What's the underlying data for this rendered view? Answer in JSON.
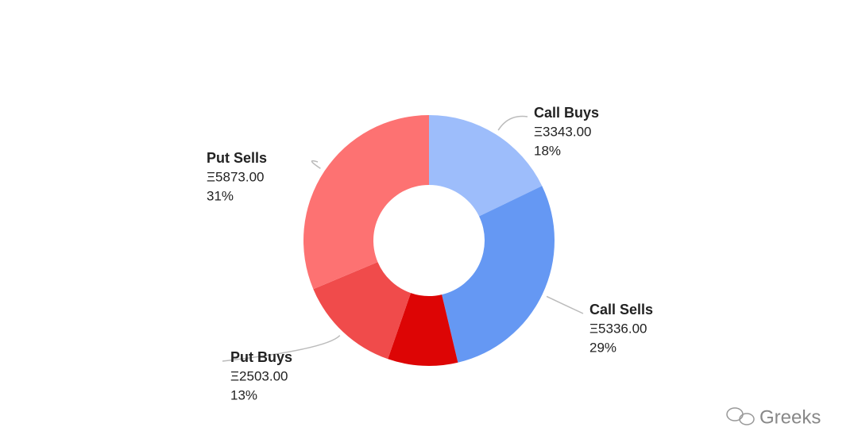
{
  "chart_data": {
    "type": "pie",
    "categories": [
      "Call Buys",
      "Call Sells",
      null,
      "Put Buys",
      "Put Sells"
    ],
    "values": [
      3343,
      5336,
      1690,
      2503,
      5873
    ],
    "value_labels": [
      "Ξ3343.00",
      "Ξ5336.00",
      null,
      "Ξ2503.00",
      "Ξ5873.00"
    ],
    "percents": [
      18,
      29,
      9,
      13,
      31
    ],
    "percent_labels": [
      "18%",
      "29%",
      null,
      "13%",
      "31%"
    ],
    "colors": [
      "#9dbdfb",
      "#6598f3",
      "#dd0505",
      "#f04b4b",
      "#fd7272"
    ],
    "donut": true
  },
  "watermark": "Greeks"
}
